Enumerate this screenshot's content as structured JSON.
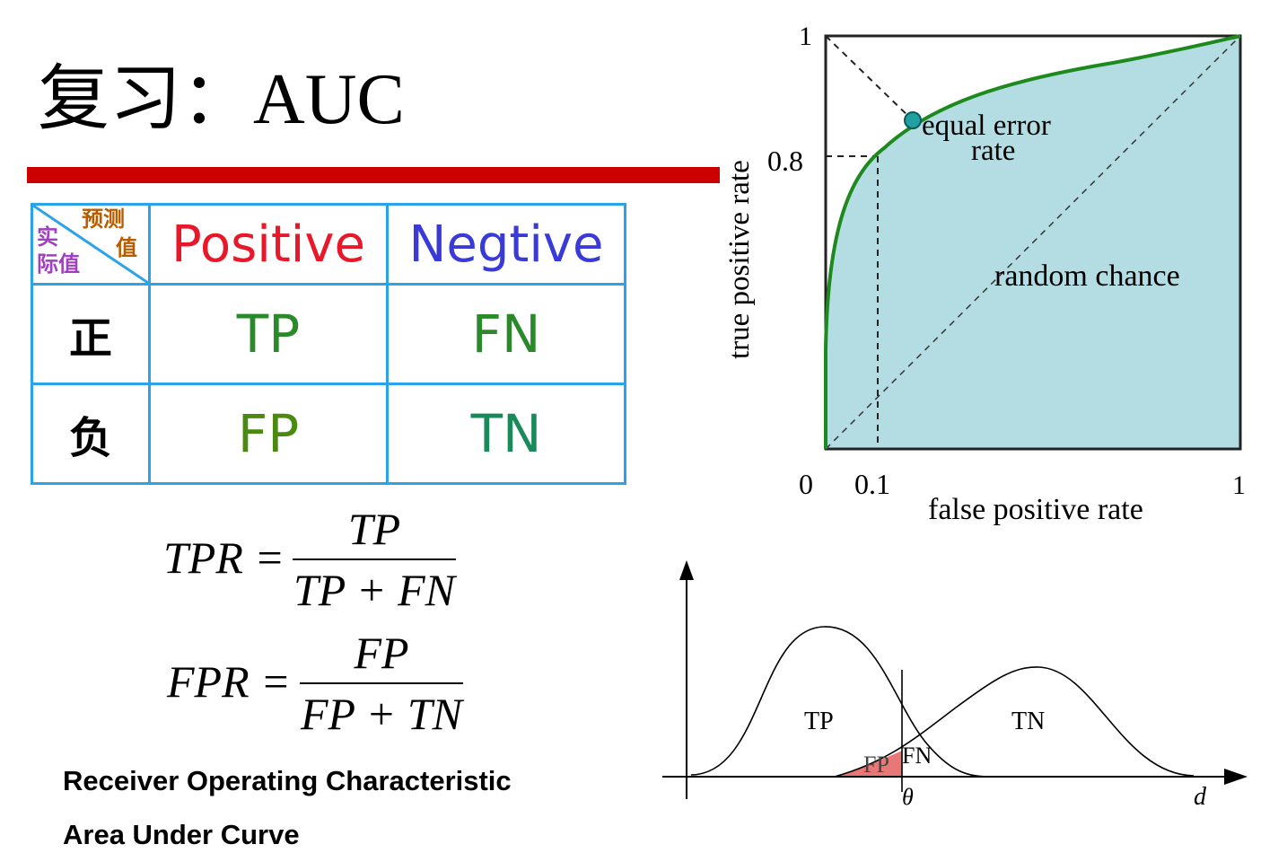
{
  "title": {
    "prefix": "复习：",
    "main": "AUC"
  },
  "confusion_matrix": {
    "corner": {
      "predicted_1": "预测",
      "predicted_2": "值",
      "actual_1": "实",
      "actual_2": "际值"
    },
    "col_positive": "Positive",
    "col_negative": "Negtive",
    "row_positive": "正",
    "row_negative": "负",
    "tp": "TP",
    "fn": "FN",
    "fp": "FP",
    "tn": "TN"
  },
  "formulas": {
    "tpr_lhs": "TPR =",
    "tpr_num": "TP",
    "tpr_den": "TP + FN",
    "fpr_lhs": "FPR =",
    "fpr_num": "FP",
    "fpr_den": "FP + TN"
  },
  "captions": {
    "line1": "Receiver Operating Characteristic",
    "line2": "Area Under Curve"
  },
  "roc_chart": {
    "xlabel": "false positive rate",
    "ylabel": "true positive rate",
    "tick_x0": "0",
    "tick_x01": "0.1",
    "tick_x1": "1",
    "tick_y08": "0.8",
    "tick_y1": "1",
    "eer_label_1": "equal error",
    "eer_label_2": "rate",
    "random_label": "random chance",
    "fill_color": "#b3dde3",
    "curve_color": "#1e8a1e"
  },
  "distribution_chart": {
    "label_tp": "TP",
    "label_tn": "TN",
    "label_fp": "FP",
    "label_fn": "FN",
    "label_theta": "θ",
    "label_d": "d",
    "fp_color": "#e87878"
  }
}
